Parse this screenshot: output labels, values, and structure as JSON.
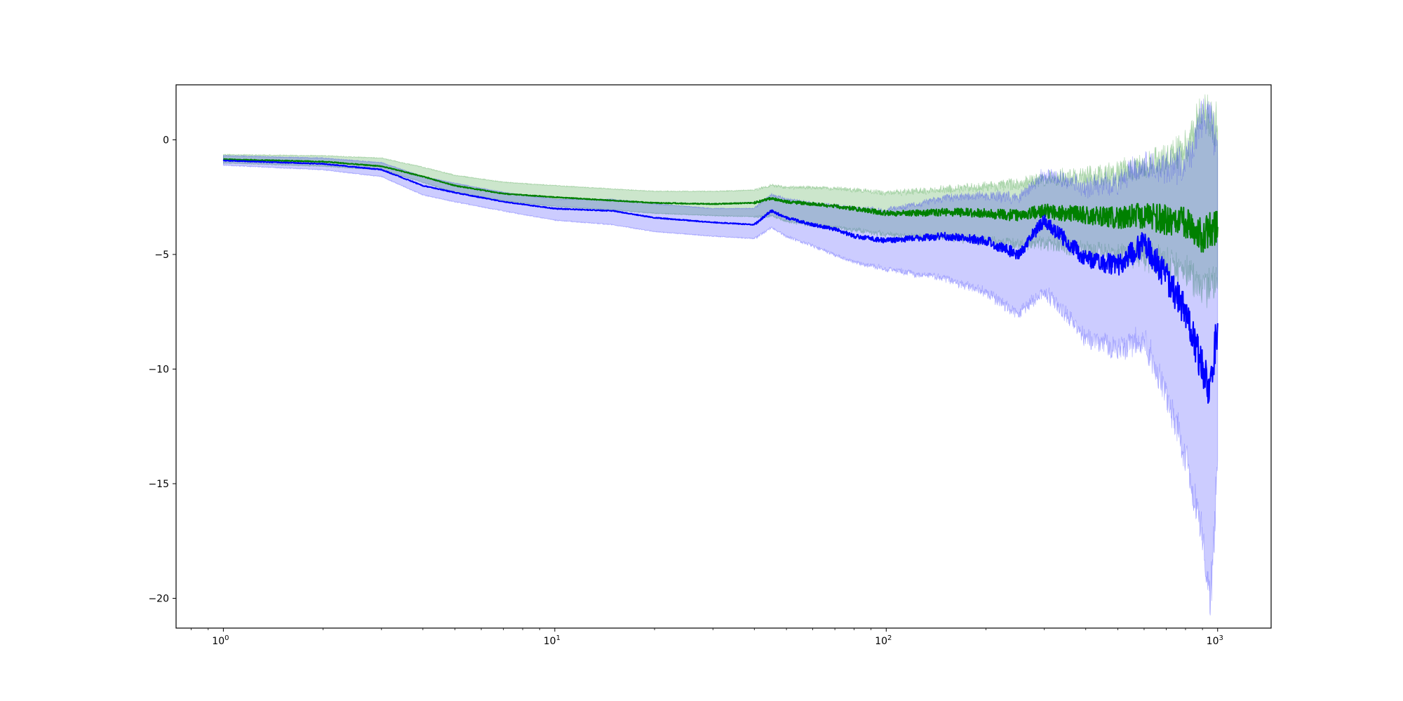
{
  "chart_data": {
    "type": "line",
    "title": "",
    "xlabel": "",
    "ylabel": "",
    "xscale": "log",
    "xlim": [
      0.72,
      1450
    ],
    "ylim": [
      -21.3,
      2.4
    ],
    "grid": false,
    "legend": "none",
    "x_ticks": [
      {
        "value": 1,
        "base": "10",
        "exp": "0"
      },
      {
        "value": 10,
        "base": "10",
        "exp": "1"
      },
      {
        "value": 100,
        "base": "10",
        "exp": "2"
      },
      {
        "value": 1000,
        "base": "10",
        "exp": "3"
      }
    ],
    "y_ticks": [
      {
        "value": 0,
        "label": "0"
      },
      {
        "value": -5,
        "label": "−5"
      },
      {
        "value": -10,
        "label": "−10"
      },
      {
        "value": -15,
        "label": "−15"
      },
      {
        "value": -20,
        "label": "−20"
      }
    ],
    "series": [
      {
        "color": "#008000",
        "band_color": "#008000",
        "band_opacity": 0.2,
        "x": [
          1,
          2,
          3,
          4,
          5,
          7,
          10,
          15,
          20,
          30,
          40,
          45,
          50,
          60,
          70,
          80,
          100,
          120,
          150,
          200,
          250,
          300,
          400,
          500,
          600,
          700,
          800,
          900,
          1000
        ],
        "y": [
          -0.85,
          -0.95,
          -1.15,
          -1.6,
          -2.0,
          -2.35,
          -2.5,
          -2.65,
          -2.75,
          -2.8,
          -2.75,
          -2.55,
          -2.7,
          -2.8,
          -2.9,
          -3.0,
          -3.2,
          -3.2,
          -3.15,
          -3.2,
          -3.3,
          -3.1,
          -3.3,
          -3.4,
          -3.3,
          -3.5,
          -3.7,
          -4.2,
          -3.8
        ],
        "lower": [
          -1.0,
          -1.15,
          -1.3,
          -1.85,
          -2.3,
          -2.65,
          -2.9,
          -3.05,
          -3.2,
          -3.3,
          -3.35,
          -3.3,
          -3.55,
          -3.7,
          -3.8,
          -3.9,
          -4.1,
          -4.2,
          -4.2,
          -4.35,
          -4.5,
          -4.4,
          -4.7,
          -4.9,
          -4.9,
          -5.2,
          -5.5,
          -6.3,
          -5.8
        ],
        "upper": [
          -0.65,
          -0.7,
          -0.8,
          -1.2,
          -1.55,
          -1.85,
          -2.0,
          -2.15,
          -2.25,
          -2.25,
          -2.2,
          -2.0,
          -2.1,
          -2.1,
          -2.15,
          -2.2,
          -2.35,
          -2.3,
          -2.2,
          -2.1,
          -2.0,
          -1.8,
          -1.7,
          -1.6,
          -1.3,
          -1.0,
          -0.6,
          0.9,
          0.3
        ]
      },
      {
        "color": "#0000ff",
        "band_color": "#0000ff",
        "band_opacity": 0.2,
        "x": [
          1,
          2,
          3,
          4,
          5,
          7,
          10,
          15,
          20,
          30,
          40,
          45,
          50,
          60,
          70,
          80,
          100,
          120,
          150,
          200,
          250,
          300,
          400,
          500,
          600,
          700,
          800,
          900,
          950,
          1000
        ],
        "y": [
          -0.9,
          -1.05,
          -1.3,
          -2.0,
          -2.3,
          -2.7,
          -3.0,
          -3.1,
          -3.4,
          -3.6,
          -3.7,
          -3.1,
          -3.4,
          -3.7,
          -3.9,
          -4.2,
          -4.4,
          -4.3,
          -4.2,
          -4.4,
          -5.0,
          -3.5,
          -5.2,
          -5.5,
          -4.5,
          -6.0,
          -7.5,
          -10.0,
          -11.0,
          -8.0
        ],
        "lower": [
          -1.1,
          -1.3,
          -1.6,
          -2.4,
          -2.7,
          -3.1,
          -3.5,
          -3.7,
          -4.0,
          -4.2,
          -4.3,
          -3.8,
          -4.2,
          -4.6,
          -5.0,
          -5.3,
          -5.6,
          -5.8,
          -6.0,
          -6.6,
          -7.5,
          -6.5,
          -8.5,
          -9.0,
          -8.5,
          -11.0,
          -13.5,
          -17.0,
          -20.0,
          -14.0
        ],
        "upper": [
          -0.7,
          -0.8,
          -1.0,
          -1.6,
          -1.9,
          -2.3,
          -2.6,
          -2.6,
          -2.8,
          -3.0,
          -3.0,
          -2.4,
          -2.6,
          -2.8,
          -2.9,
          -3.0,
          -3.1,
          -2.9,
          -2.6,
          -2.5,
          -2.6,
          -1.6,
          -2.2,
          -2.0,
          -1.2,
          -1.5,
          -1.2,
          0.8,
          1.0,
          -0.8
        ]
      }
    ]
  }
}
